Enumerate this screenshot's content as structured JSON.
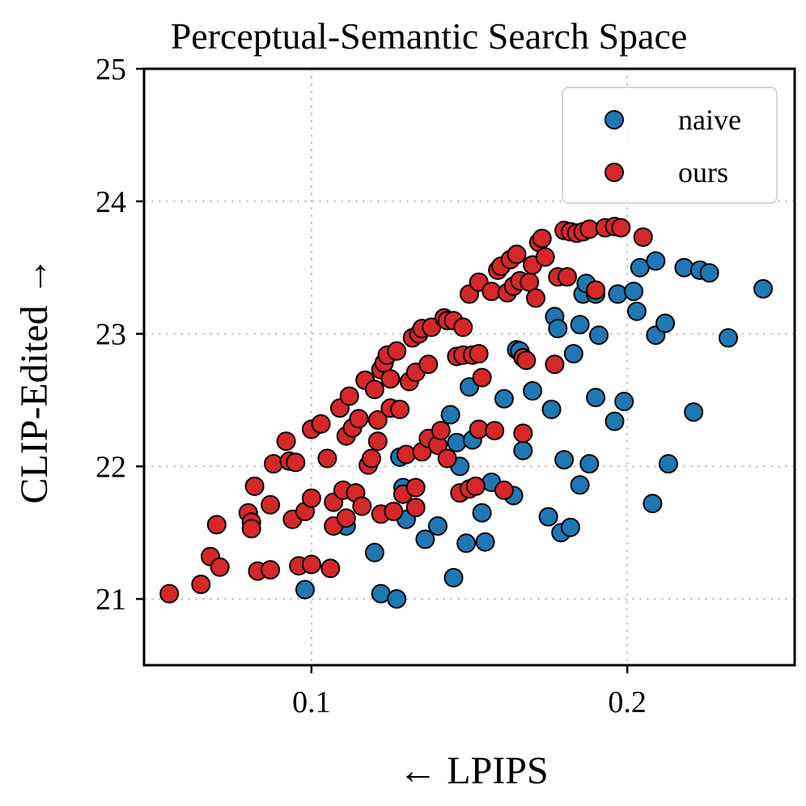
{
  "chart_data": {
    "type": "scatter",
    "title": "Perceptual-Semantic Search Space",
    "xlabel": "← LPIPS",
    "ylabel": "CLIP-Edited →",
    "xlim": [
      0.047,
      0.253
    ],
    "ylim": [
      20.5,
      25.0
    ],
    "xticks": [
      0.1,
      0.2
    ],
    "xtick_labels": [
      "0.1",
      "0.2"
    ],
    "yticks": [
      21,
      22,
      23,
      24,
      25
    ],
    "ytick_labels": [
      "21",
      "22",
      "23",
      "24",
      "25"
    ],
    "grid": true,
    "legend_position": "top-right",
    "series": [
      {
        "name": "naive",
        "color": "#1f77b4",
        "points": [
          [
            0.098,
            21.07
          ],
          [
            0.12,
            21.35
          ],
          [
            0.122,
            21.04
          ],
          [
            0.127,
            21.0
          ],
          [
            0.111,
            21.55
          ],
          [
            0.128,
            22.07
          ],
          [
            0.129,
            21.84
          ],
          [
            0.13,
            21.6
          ],
          [
            0.136,
            21.45
          ],
          [
            0.14,
            21.55
          ],
          [
            0.145,
            21.16
          ],
          [
            0.144,
            22.39
          ],
          [
            0.146,
            22.18
          ],
          [
            0.147,
            22.0
          ],
          [
            0.149,
            21.42
          ],
          [
            0.15,
            22.6
          ],
          [
            0.151,
            22.2
          ],
          [
            0.154,
            21.65
          ],
          [
            0.155,
            21.43
          ],
          [
            0.157,
            21.88
          ],
          [
            0.161,
            22.51
          ],
          [
            0.164,
            21.78
          ],
          [
            0.165,
            22.88
          ],
          [
            0.166,
            22.87
          ],
          [
            0.167,
            22.12
          ],
          [
            0.17,
            22.57
          ],
          [
            0.175,
            21.62
          ],
          [
            0.176,
            22.43
          ],
          [
            0.177,
            23.13
          ],
          [
            0.178,
            23.04
          ],
          [
            0.179,
            21.5
          ],
          [
            0.18,
            22.05
          ],
          [
            0.182,
            21.54
          ],
          [
            0.183,
            22.85
          ],
          [
            0.185,
            21.86
          ],
          [
            0.185,
            23.07
          ],
          [
            0.186,
            23.3
          ],
          [
            0.187,
            23.38
          ],
          [
            0.188,
            22.02
          ],
          [
            0.19,
            23.3
          ],
          [
            0.19,
            22.52
          ],
          [
            0.191,
            22.99
          ],
          [
            0.196,
            22.34
          ],
          [
            0.197,
            23.3
          ],
          [
            0.199,
            22.49
          ],
          [
            0.202,
            23.32
          ],
          [
            0.203,
            23.17
          ],
          [
            0.204,
            23.5
          ],
          [
            0.208,
            21.72
          ],
          [
            0.209,
            22.99
          ],
          [
            0.209,
            23.55
          ],
          [
            0.212,
            23.08
          ],
          [
            0.213,
            22.02
          ],
          [
            0.218,
            23.5
          ],
          [
            0.221,
            22.41
          ],
          [
            0.223,
            23.48
          ],
          [
            0.226,
            23.46
          ],
          [
            0.232,
            22.97
          ],
          [
            0.243,
            23.34
          ]
        ]
      },
      {
        "name": "ours",
        "color": "#d62728",
        "points": [
          [
            0.055,
            21.04
          ],
          [
            0.065,
            21.11
          ],
          [
            0.068,
            21.32
          ],
          [
            0.071,
            21.24
          ],
          [
            0.07,
            21.56
          ],
          [
            0.08,
            21.65
          ],
          [
            0.081,
            21.58
          ],
          [
            0.081,
            21.53
          ],
          [
            0.082,
            21.85
          ],
          [
            0.083,
            21.21
          ],
          [
            0.087,
            21.22
          ],
          [
            0.087,
            21.71
          ],
          [
            0.088,
            22.02
          ],
          [
            0.092,
            22.19
          ],
          [
            0.093,
            22.04
          ],
          [
            0.094,
            21.6
          ],
          [
            0.095,
            22.03
          ],
          [
            0.096,
            21.25
          ],
          [
            0.098,
            21.66
          ],
          [
            0.1,
            21.26
          ],
          [
            0.1,
            21.76
          ],
          [
            0.1,
            22.28
          ],
          [
            0.103,
            22.32
          ],
          [
            0.105,
            22.06
          ],
          [
            0.106,
            21.23
          ],
          [
            0.107,
            21.73
          ],
          [
            0.107,
            21.55
          ],
          [
            0.109,
            22.44
          ],
          [
            0.11,
            21.82
          ],
          [
            0.111,
            22.23
          ],
          [
            0.111,
            21.61
          ],
          [
            0.112,
            22.53
          ],
          [
            0.113,
            22.29
          ],
          [
            0.114,
            21.8
          ],
          [
            0.115,
            22.36
          ],
          [
            0.116,
            21.7
          ],
          [
            0.117,
            22.65
          ],
          [
            0.118,
            22.01
          ],
          [
            0.119,
            22.06
          ],
          [
            0.12,
            22.58
          ],
          [
            0.121,
            22.35
          ],
          [
            0.121,
            22.19
          ],
          [
            0.122,
            22.73
          ],
          [
            0.122,
            21.64
          ],
          [
            0.123,
            22.78
          ],
          [
            0.124,
            22.84
          ],
          [
            0.125,
            22.44
          ],
          [
            0.125,
            22.66
          ],
          [
            0.126,
            21.66
          ],
          [
            0.127,
            22.87
          ],
          [
            0.128,
            22.43
          ],
          [
            0.129,
            21.79
          ],
          [
            0.13,
            22.09
          ],
          [
            0.131,
            22.64
          ],
          [
            0.132,
            22.97
          ],
          [
            0.133,
            21.84
          ],
          [
            0.133,
            21.69
          ],
          [
            0.133,
            22.71
          ],
          [
            0.134,
            23.0
          ],
          [
            0.135,
            22.11
          ],
          [
            0.135,
            23.04
          ],
          [
            0.137,
            22.77
          ],
          [
            0.137,
            22.21
          ],
          [
            0.138,
            23.05
          ],
          [
            0.14,
            22.16
          ],
          [
            0.141,
            22.27
          ],
          [
            0.142,
            23.12
          ],
          [
            0.143,
            22.06
          ],
          [
            0.143,
            23.1
          ],
          [
            0.145,
            23.1
          ],
          [
            0.146,
            22.83
          ],
          [
            0.147,
            21.8
          ],
          [
            0.148,
            23.05
          ],
          [
            0.148,
            22.84
          ],
          [
            0.15,
            21.83
          ],
          [
            0.15,
            23.3
          ],
          [
            0.151,
            22.84
          ],
          [
            0.152,
            21.85
          ],
          [
            0.153,
            23.39
          ],
          [
            0.153,
            22.85
          ],
          [
            0.153,
            22.28
          ],
          [
            0.154,
            22.67
          ],
          [
            0.157,
            23.32
          ],
          [
            0.158,
            22.27
          ],
          [
            0.159,
            23.48
          ],
          [
            0.16,
            23.51
          ],
          [
            0.161,
            21.82
          ],
          [
            0.162,
            23.31
          ],
          [
            0.163,
            23.56
          ],
          [
            0.164,
            23.36
          ],
          [
            0.165,
            23.6
          ],
          [
            0.166,
            23.4
          ],
          [
            0.167,
            22.25
          ],
          [
            0.167,
            22.82
          ],
          [
            0.168,
            22.8
          ],
          [
            0.169,
            23.39
          ],
          [
            0.17,
            23.52
          ],
          [
            0.171,
            23.27
          ],
          [
            0.172,
            23.69
          ],
          [
            0.173,
            23.72
          ],
          [
            0.174,
            23.58
          ],
          [
            0.177,
            22.77
          ],
          [
            0.178,
            23.43
          ],
          [
            0.18,
            23.78
          ],
          [
            0.181,
            23.43
          ],
          [
            0.182,
            23.77
          ],
          [
            0.184,
            23.76
          ],
          [
            0.186,
            23.77
          ],
          [
            0.188,
            23.79
          ],
          [
            0.19,
            23.33
          ],
          [
            0.193,
            23.8
          ],
          [
            0.196,
            23.81
          ],
          [
            0.198,
            23.8
          ],
          [
            0.205,
            23.73
          ]
        ]
      }
    ]
  }
}
